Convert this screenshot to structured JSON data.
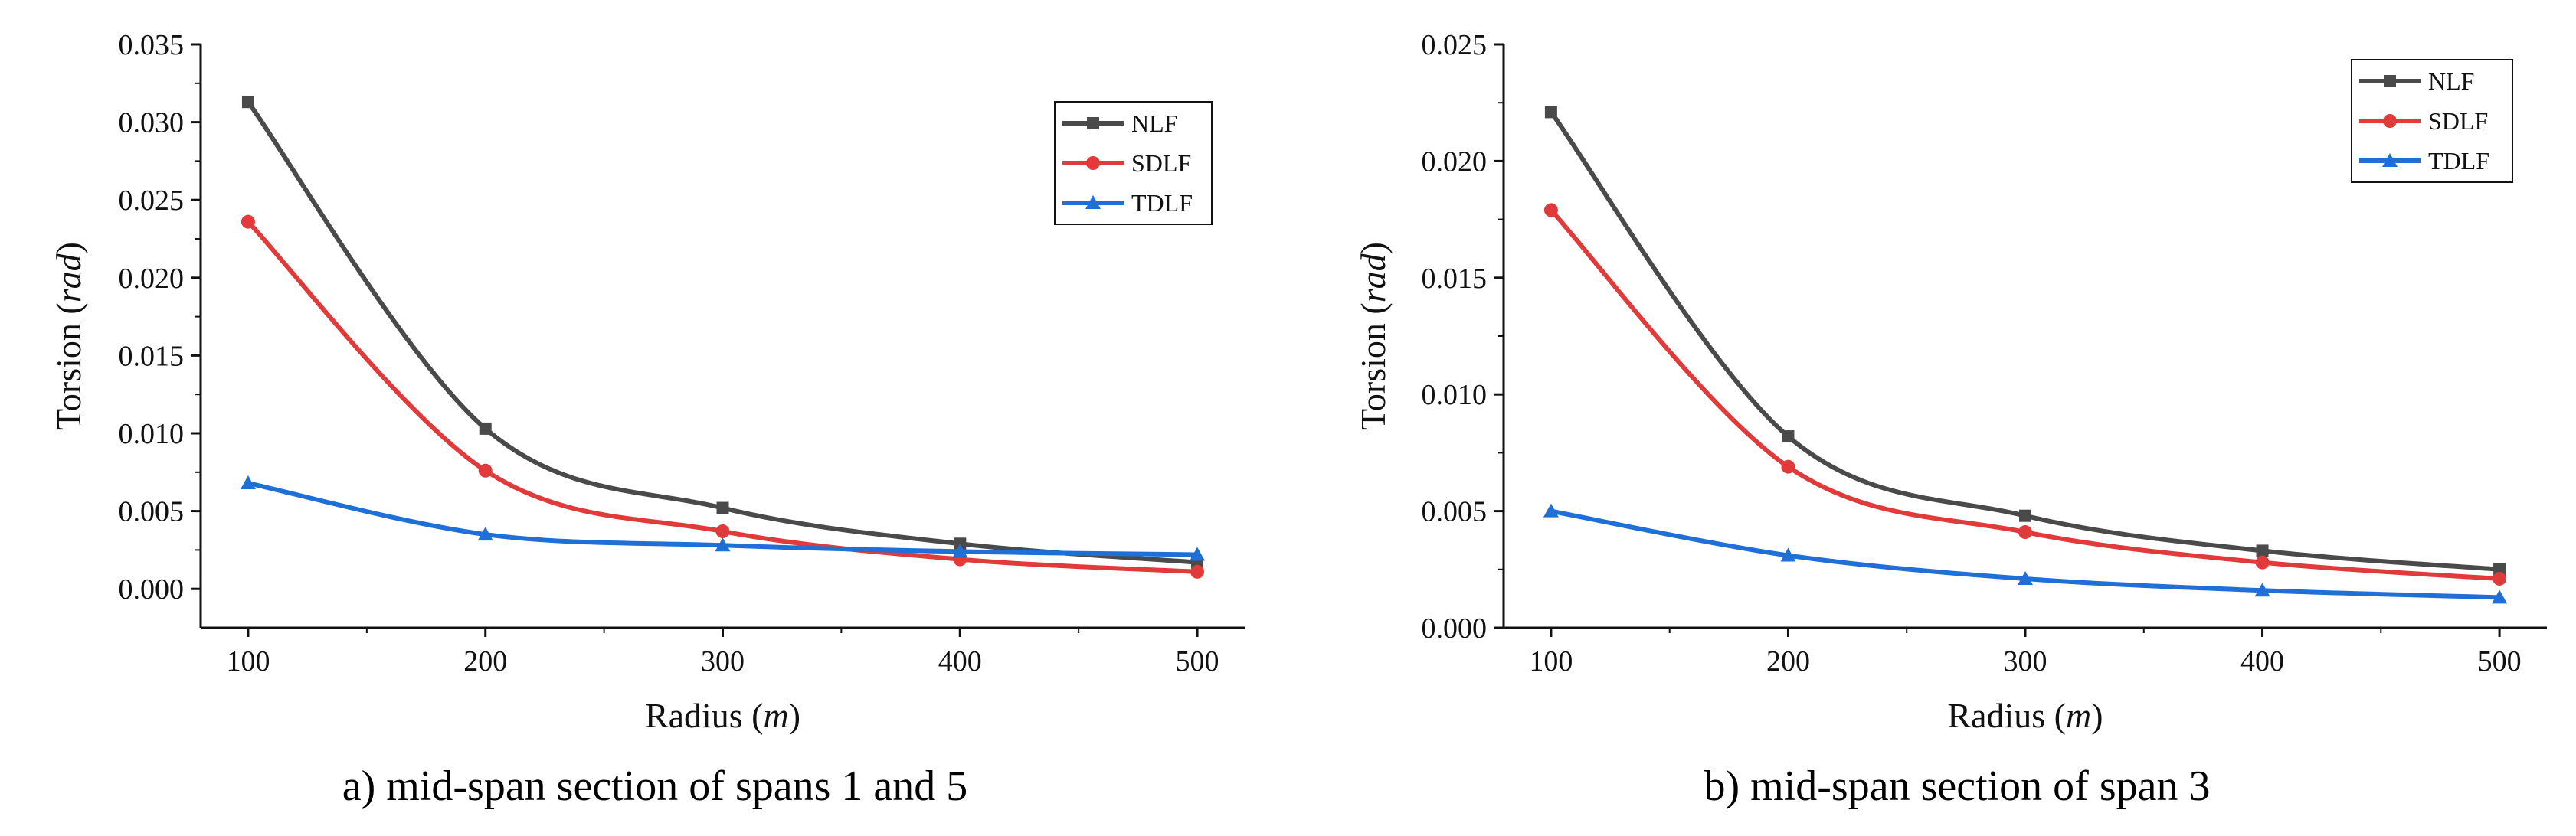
{
  "chart_data": [
    {
      "type": "line",
      "caption": "a) mid-span section of spans 1 and 5",
      "xlabel": "Radius",
      "xunit": "m",
      "ylabel": "Torsion",
      "yunit": "rad",
      "x": [
        100,
        200,
        300,
        400,
        500
      ],
      "xlim": [
        80,
        520
      ],
      "xticks": [
        "100",
        "200",
        "300",
        "400",
        "500"
      ],
      "ylim": [
        -0.0025,
        0.035
      ],
      "yticks": [
        "0.000",
        "0.005",
        "0.010",
        "0.015",
        "0.020",
        "0.025",
        "0.030",
        "0.035"
      ],
      "legend_position": "top-right",
      "series": [
        {
          "name": "NLF",
          "color": "#4a4a4a",
          "marker": "square",
          "values": [
            0.0313,
            0.0103,
            0.0052,
            0.0029,
            0.0017
          ]
        },
        {
          "name": "SDLF",
          "color": "#e03a3a",
          "marker": "circle",
          "values": [
            0.0236,
            0.0076,
            0.0037,
            0.0019,
            0.0011
          ]
        },
        {
          "name": "TDLF",
          "color": "#1f6fd6",
          "marker": "triangle",
          "values": [
            0.0068,
            0.0035,
            0.0028,
            0.0024,
            0.0022
          ]
        }
      ]
    },
    {
      "type": "line",
      "caption": "b) mid-span section of span 3",
      "xlabel": "Radius",
      "xunit": "m",
      "ylabel": "Torsion",
      "yunit": "rad",
      "x": [
        100,
        200,
        300,
        400,
        500
      ],
      "xlim": [
        80,
        520
      ],
      "xticks": [
        "100",
        "200",
        "300",
        "400",
        "500"
      ],
      "ylim": [
        0,
        0.025
      ],
      "yticks": [
        "0.000",
        "0.005",
        "0.010",
        "0.015",
        "0.020",
        "0.025"
      ],
      "legend_position": "top-right",
      "series": [
        {
          "name": "NLF",
          "color": "#4a4a4a",
          "marker": "square",
          "values": [
            0.0221,
            0.0082,
            0.0048,
            0.0033,
            0.0025
          ]
        },
        {
          "name": "SDLF",
          "color": "#e03a3a",
          "marker": "circle",
          "values": [
            0.0179,
            0.0069,
            0.0041,
            0.0028,
            0.0021
          ]
        },
        {
          "name": "TDLF",
          "color": "#1f6fd6",
          "marker": "triangle",
          "values": [
            0.005,
            0.0031,
            0.0021,
            0.0016,
            0.0013
          ]
        }
      ]
    }
  ]
}
